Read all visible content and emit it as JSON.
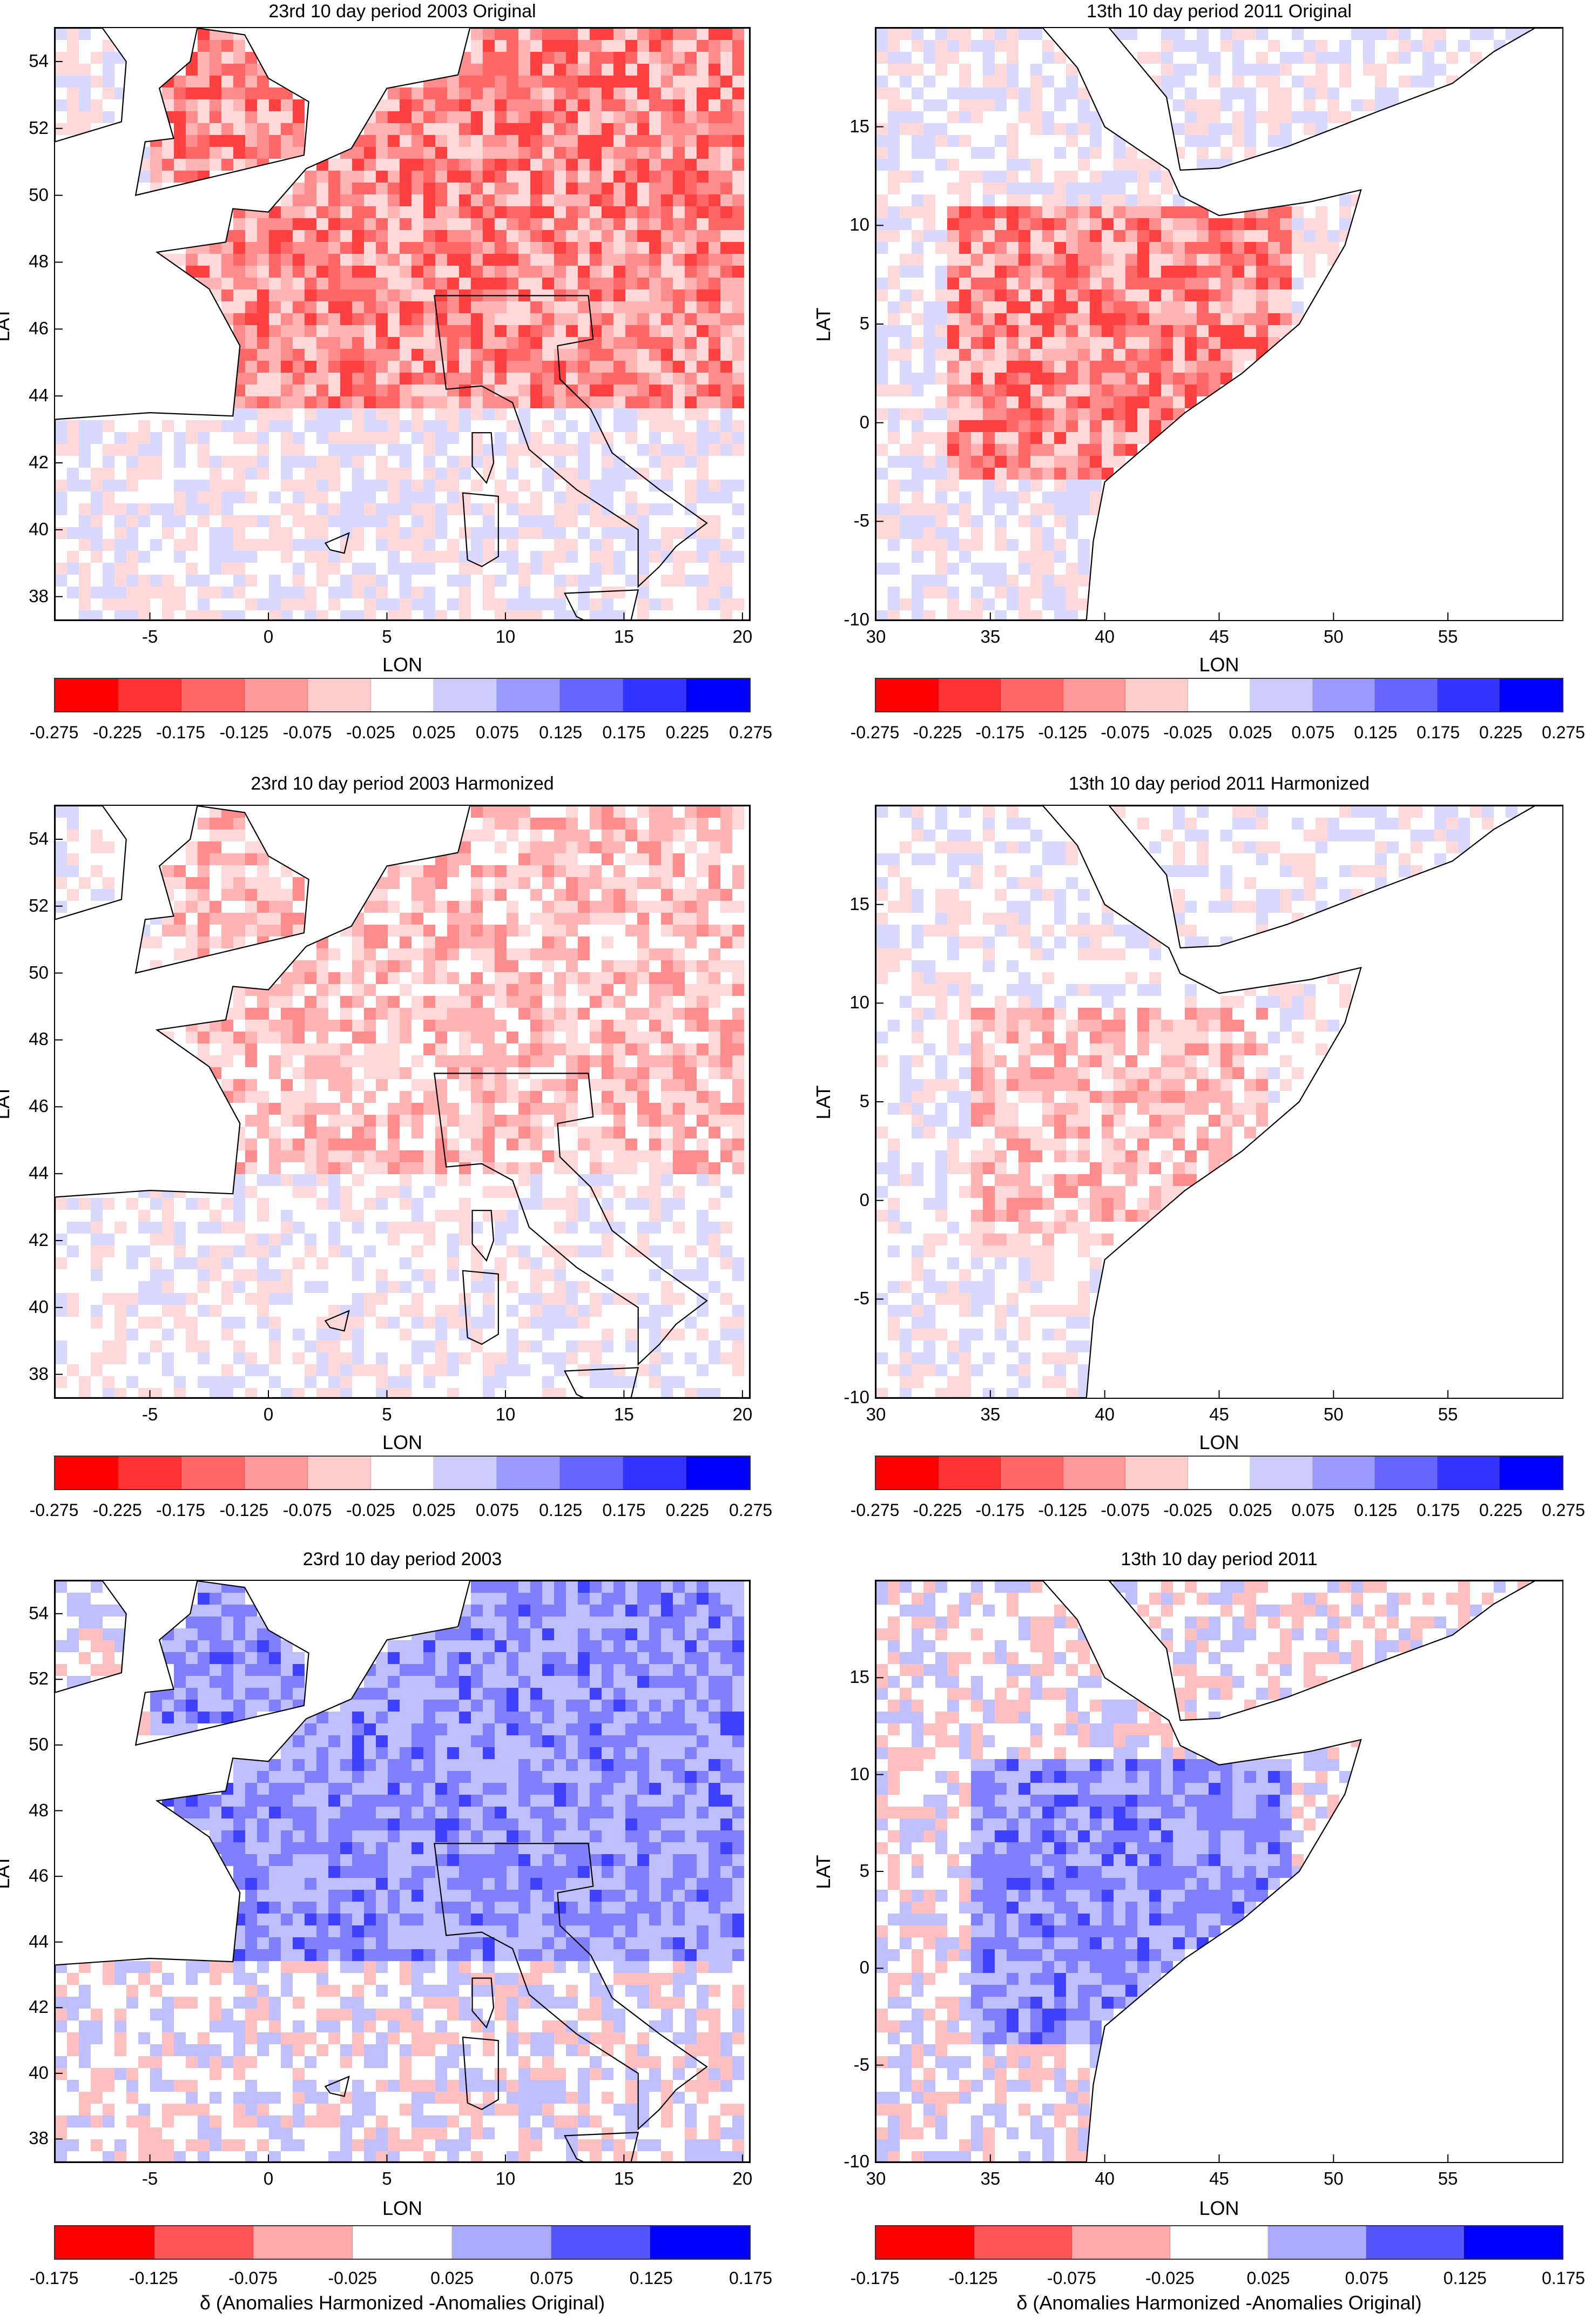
{
  "figure": {
    "panels": [
      {
        "id": "europe-original",
        "title": "23rd 10 day period 2003 Original",
        "region": "europe",
        "xlabel": "LON",
        "ylabel": "LAT",
        "xticks": [
          "-5",
          "0",
          "5",
          "10",
          "15",
          "20"
        ],
        "xtick_values": [
          -5,
          0,
          5,
          10,
          15,
          20
        ],
        "yticks": [
          "54",
          "52",
          "50",
          "48",
          "46",
          "44",
          "42",
          "40",
          "38"
        ],
        "ytick_values": [
          54,
          52,
          50,
          48,
          46,
          44,
          42,
          40,
          38
        ],
        "xlim": [
          -9,
          20.3
        ],
        "ylim": [
          37.3,
          55
        ],
        "colorbar": {
          "ticks": [
            "-0.275",
            "-0.225",
            "-0.175",
            "-0.125",
            "-0.075",
            "-0.025",
            "0.025",
            "0.075",
            "0.125",
            "0.175",
            "0.225",
            "0.275"
          ],
          "colors": [
            "#ff0000",
            "#ff3333",
            "#ff6666",
            "#ff9999",
            "#ffcccc",
            "#ffffff",
            "#ccccff",
            "#9999ff",
            "#6666ff",
            "#3333ff",
            "#0000ff"
          ],
          "caption": ""
        },
        "dominant_anomaly": "negative"
      },
      {
        "id": "africa-original",
        "title": "13th 10 day period 2011 Original",
        "region": "africa",
        "xlabel": "LON",
        "ylabel": "LAT",
        "xticks": [
          "30",
          "35",
          "40",
          "45",
          "50",
          "55"
        ],
        "xtick_values": [
          30,
          35,
          40,
          45,
          50,
          55
        ],
        "yticks": [
          "15",
          "10",
          "5",
          "0",
          "-5",
          "-10"
        ],
        "ytick_values": [
          15,
          10,
          5,
          0,
          -5,
          -10
        ],
        "xlim": [
          30,
          60
        ],
        "ylim": [
          -10,
          20
        ],
        "colorbar": {
          "ticks": [
            "-0.275",
            "-0.225",
            "-0.175",
            "-0.125",
            "-0.075",
            "-0.025",
            "0.025",
            "0.075",
            "0.125",
            "0.175",
            "0.225",
            "0.275"
          ],
          "colors": [
            "#ff0000",
            "#ff3333",
            "#ff6666",
            "#ff9999",
            "#ffcccc",
            "#ffffff",
            "#ccccff",
            "#9999ff",
            "#6666ff",
            "#3333ff",
            "#0000ff"
          ],
          "caption": ""
        },
        "dominant_anomaly": "negative"
      },
      {
        "id": "europe-harmonized",
        "title": "23rd 10 day period 2003 Harmonized",
        "region": "europe",
        "xlabel": "LON",
        "ylabel": "LAT",
        "xticks": [
          "-5",
          "0",
          "5",
          "10",
          "15",
          "20"
        ],
        "xtick_values": [
          -5,
          0,
          5,
          10,
          15,
          20
        ],
        "yticks": [
          "54",
          "52",
          "50",
          "48",
          "46",
          "44",
          "42",
          "40",
          "38"
        ],
        "ytick_values": [
          54,
          52,
          50,
          48,
          46,
          44,
          42,
          40,
          38
        ],
        "xlim": [
          -9,
          20.3
        ],
        "ylim": [
          37.3,
          55
        ],
        "colorbar": {
          "ticks": [
            "-0.275",
            "-0.225",
            "-0.175",
            "-0.125",
            "-0.075",
            "-0.025",
            "0.025",
            "0.075",
            "0.125",
            "0.175",
            "0.225",
            "0.275"
          ],
          "colors": [
            "#ff0000",
            "#ff3333",
            "#ff6666",
            "#ff9999",
            "#ffcccc",
            "#ffffff",
            "#ccccff",
            "#9999ff",
            "#6666ff",
            "#3333ff",
            "#0000ff"
          ],
          "caption": ""
        },
        "dominant_anomaly": "negative-weak"
      },
      {
        "id": "africa-harmonized",
        "title": "13th 10 day period 2011 Harmonized",
        "region": "africa",
        "xlabel": "LON",
        "ylabel": "LAT",
        "xticks": [
          "30",
          "35",
          "40",
          "45",
          "50",
          "55"
        ],
        "xtick_values": [
          30,
          35,
          40,
          45,
          50,
          55
        ],
        "yticks": [
          "15",
          "10",
          "5",
          "0",
          "-5",
          "-10"
        ],
        "ytick_values": [
          15,
          10,
          5,
          0,
          -5,
          -10
        ],
        "xlim": [
          30,
          60
        ],
        "ylim": [
          -10,
          20
        ],
        "colorbar": {
          "ticks": [
            "-0.275",
            "-0.225",
            "-0.175",
            "-0.125",
            "-0.075",
            "-0.025",
            "0.025",
            "0.075",
            "0.125",
            "0.175",
            "0.225",
            "0.275"
          ],
          "colors": [
            "#ff0000",
            "#ff3333",
            "#ff6666",
            "#ff9999",
            "#ffcccc",
            "#ffffff",
            "#ccccff",
            "#9999ff",
            "#6666ff",
            "#3333ff",
            "#0000ff"
          ],
          "caption": ""
        },
        "dominant_anomaly": "negative-weak"
      },
      {
        "id": "europe-delta",
        "title": "23rd 10 day period 2003",
        "region": "europe",
        "xlabel": "LON",
        "ylabel": "LAT",
        "xticks": [
          "-5",
          "0",
          "5",
          "10",
          "15",
          "20"
        ],
        "xtick_values": [
          -5,
          0,
          5,
          10,
          15,
          20
        ],
        "yticks": [
          "54",
          "52",
          "50",
          "48",
          "46",
          "44",
          "42",
          "40",
          "38"
        ],
        "ytick_values": [
          54,
          52,
          50,
          48,
          46,
          44,
          42,
          40,
          38
        ],
        "xlim": [
          -9,
          20.3
        ],
        "ylim": [
          37.3,
          55
        ],
        "colorbar": {
          "ticks": [
            "-0.175",
            "-0.125",
            "-0.075",
            "-0.025",
            "0.025",
            "0.075",
            "0.125",
            "0.175"
          ],
          "colors": [
            "#ff0000",
            "#ff5555",
            "#ffaaaa",
            "#ffffff",
            "#aaaaff",
            "#5555ff",
            "#0000ff"
          ],
          "caption": "δ (Anomalies Harmonized -Anomalies Original)"
        },
        "dominant_anomaly": "positive"
      },
      {
        "id": "africa-delta",
        "title": "13th 10 day period 2011",
        "region": "africa",
        "xlabel": "LON",
        "ylabel": "LAT",
        "xticks": [
          "30",
          "35",
          "40",
          "45",
          "50",
          "55"
        ],
        "xtick_values": [
          30,
          35,
          40,
          45,
          50,
          55
        ],
        "yticks": [
          "15",
          "10",
          "5",
          "0",
          "-5",
          "-10"
        ],
        "ytick_values": [
          15,
          10,
          5,
          0,
          -5,
          -10
        ],
        "xlim": [
          30,
          60
        ],
        "ylim": [
          -10,
          20
        ],
        "colorbar": {
          "ticks": [
            "-0.175",
            "-0.125",
            "-0.075",
            "-0.025",
            "0.025",
            "0.075",
            "0.125",
            "0.175"
          ],
          "colors": [
            "#ff0000",
            "#ff5555",
            "#ffaaaa",
            "#ffffff",
            "#aaaaff",
            "#5555ff",
            "#0000ff"
          ],
          "caption": "δ (Anomalies Harmonized -Anomalies Original)"
        },
        "dominant_anomaly": "positive"
      }
    ]
  }
}
